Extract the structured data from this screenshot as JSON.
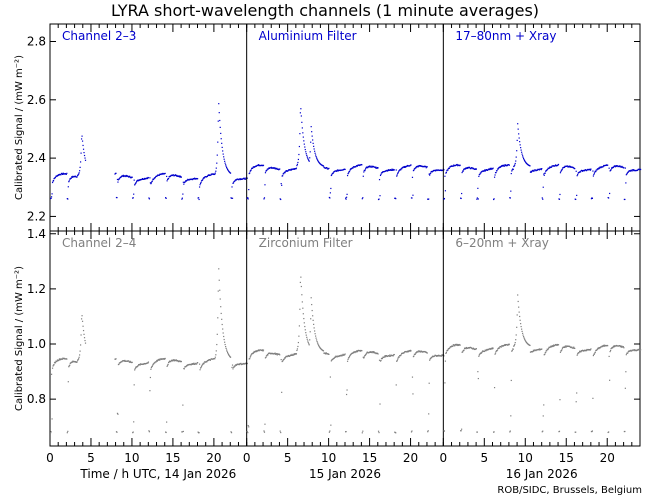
{
  "title": "LYRA short-wavelength channels (1 minute averages)",
  "credit": "ROB/SIDC, Brussels, Belgium",
  "colors": {
    "top": "#0000cc",
    "bottom": "#7f7f7f",
    "axis": "#000000"
  },
  "chart_data": {
    "type": "scatter",
    "ylabel": "Calibrated Signal / (mW m⁻²)",
    "x_ticks": [
      "0",
      "5",
      "10",
      "15",
      "20"
    ],
    "x_range": [
      0,
      24
    ],
    "date_labels": [
      "Time / h UTC, 14 Jan 2026",
      "15 Jan 2026",
      "16 Jan 2026"
    ],
    "rows": [
      {
        "ylim": [
          2.15,
          2.86
        ],
        "y_ticks": [
          "2.2",
          "2.4",
          "2.6",
          "2.8"
        ],
        "y_tick_values": [
          2.2,
          2.4,
          2.6,
          2.8
        ],
        "panels": [
          "Channel 2–3",
          "Aluminium Filter",
          "17–80nm + Xray"
        ],
        "baseline": [
          2.34,
          2.37,
          2.37
        ],
        "low": 2.26,
        "peaks": [
          [
            [
              3.8,
              2.49
            ],
            [
              20.5,
              2.6
            ]
          ],
          [
            [
              6.5,
              2.59
            ],
            [
              7.8,
              2.51
            ]
          ],
          [
            [
              9.0,
              2.52
            ]
          ]
        ]
      },
      {
        "ylim": [
          0.63,
          1.41
        ],
        "y_ticks": [
          "0.8",
          "1.0",
          "1.2",
          "1.4"
        ],
        "y_tick_values": [
          0.8,
          1.0,
          1.2,
          1.4
        ],
        "panels": [
          "Channel 2–4",
          "Zirconium Filter",
          "6–20nm + Xray"
        ],
        "baseline": [
          0.94,
          0.97,
          0.99
        ],
        "low": 0.68,
        "peaks": [
          [
            [
              3.8,
              1.12
            ],
            [
              20.5,
              1.29
            ]
          ],
          [
            [
              6.5,
              1.27
            ],
            [
              7.8,
              1.17
            ]
          ],
          [
            [
              9.0,
              1.18
            ]
          ]
        ]
      }
    ]
  }
}
